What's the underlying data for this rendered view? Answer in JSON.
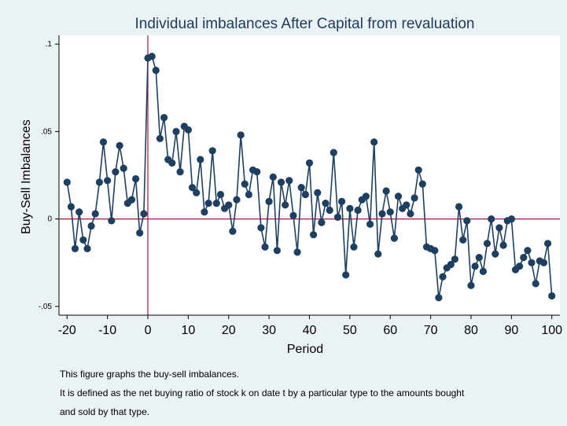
{
  "chart_data": {
    "type": "line",
    "title": "Individual imbalances After Capital from revaluation",
    "xlabel": "Period",
    "ylabel": "Buy-Sell Imbalances",
    "xlim": [
      -22,
      102
    ],
    "ylim": [
      -0.055,
      0.105
    ],
    "xticks": [
      -20,
      -10,
      0,
      10,
      20,
      30,
      40,
      50,
      60,
      70,
      80,
      90,
      100
    ],
    "yticks": [
      -0.05,
      0,
      0.05,
      0.1
    ],
    "xtick_labels": [
      "-20",
      "-10",
      "0",
      "10",
      "20",
      "30",
      "40",
      "50",
      "60",
      "70",
      "80",
      "90",
      "100"
    ],
    "ytick_labels": [
      "-.05",
      "0",
      ".05",
      ".1"
    ],
    "reference_lines": {
      "x": 0,
      "y": 0,
      "color": "#9c1b3a"
    },
    "grid": false,
    "marker": "circle",
    "series_color": "#1f3f60",
    "x": [
      -20,
      -19,
      -18,
      -17,
      -16,
      -15,
      -14,
      -13,
      -12,
      -11,
      -10,
      -9,
      -8,
      -7,
      -6,
      -5,
      -4,
      -3,
      -2,
      -1,
      0,
      1,
      2,
      3,
      4,
      5,
      6,
      7,
      8,
      9,
      10,
      11,
      12,
      13,
      14,
      15,
      16,
      17,
      18,
      19,
      20,
      21,
      22,
      23,
      24,
      25,
      26,
      27,
      28,
      29,
      30,
      31,
      32,
      33,
      34,
      35,
      36,
      37,
      38,
      39,
      40,
      41,
      42,
      43,
      44,
      45,
      46,
      47,
      48,
      49,
      50,
      51,
      52,
      53,
      54,
      55,
      56,
      57,
      58,
      59,
      60,
      61,
      62,
      63,
      64,
      65,
      66,
      67,
      68,
      69,
      70,
      71,
      72,
      73,
      74,
      75,
      76,
      77,
      78,
      79,
      80,
      81,
      82,
      83,
      84,
      85,
      86,
      87,
      88,
      89,
      90,
      91,
      92,
      93,
      94,
      95,
      96,
      97,
      98,
      99,
      100
    ],
    "y": [
      0.021,
      0.007,
      -0.017,
      0.004,
      -0.012,
      -0.017,
      -0.004,
      0.003,
      0.021,
      0.044,
      0.022,
      -0.001,
      0.027,
      0.042,
      0.029,
      0.009,
      0.011,
      0.023,
      -0.008,
      0.003,
      0.092,
      0.093,
      0.085,
      0.046,
      0.058,
      0.034,
      0.032,
      0.05,
      0.027,
      0.053,
      0.051,
      0.018,
      0.015,
      0.034,
      0.004,
      0.009,
      0.039,
      0.009,
      0.014,
      0.006,
      0.008,
      -0.007,
      0.011,
      0.048,
      0.02,
      0.014,
      0.028,
      0.027,
      -0.005,
      -0.016,
      0.01,
      0.024,
      -0.018,
      0.021,
      0.008,
      0.022,
      0.002,
      -0.019,
      0.018,
      0.014,
      0.032,
      -0.009,
      0.015,
      -0.002,
      0.009,
      0.005,
      0.038,
      0.001,
      0.01,
      -0.032,
      0.006,
      -0.016,
      0.005,
      0.011,
      0.013,
      -0.003,
      0.044,
      -0.02,
      0.003,
      0.016,
      0.004,
      -0.011,
      0.013,
      0.006,
      0.008,
      0.003,
      0.012,
      0.028,
      0.02,
      -0.016,
      -0.017,
      -0.018,
      -0.045,
      -0.033,
      -0.028,
      -0.026,
      -0.023,
      0.007,
      -0.012,
      -0.001,
      -0.038,
      -0.027,
      -0.022,
      -0.03,
      -0.014,
      0.0,
      -0.02,
      -0.005,
      -0.015,
      -0.001,
      0.0,
      -0.029,
      -0.027,
      -0.022,
      -0.018,
      -0.025,
      -0.037,
      -0.024,
      -0.025,
      -0.014,
      -0.044
    ]
  },
  "note_lines": [
    "This figure graphs the buy-sell imbalances.",
    "It is defined as the net buying ratio of stock k on date t by a particular type to the amounts bought",
    "and sold by that type."
  ]
}
